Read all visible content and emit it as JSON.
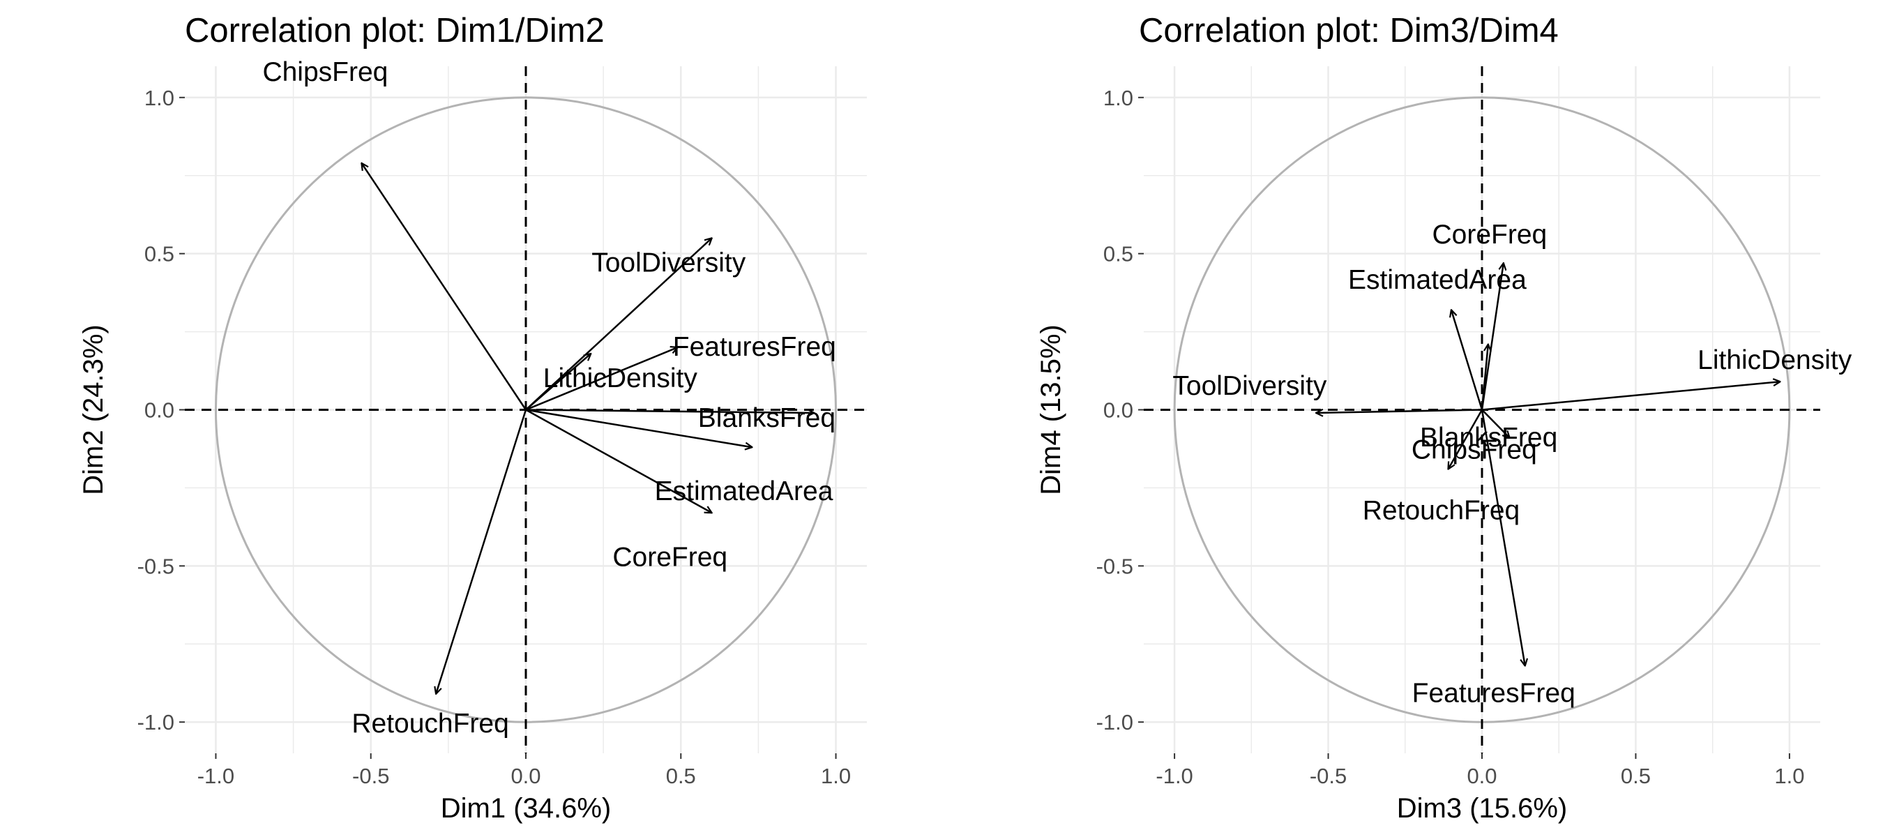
{
  "chart_data": [
    {
      "type": "scatter",
      "title": "Correlation plot: Dim1/Dim2",
      "xlabel": "Dim1 (34.6%)",
      "ylabel": "Dim2 (24.3%)",
      "xlim": [
        -1.1,
        1.1
      ],
      "ylim": [
        -1.1,
        1.1
      ],
      "xticks": [
        "-1.0",
        "-0.5",
        "0.0",
        "0.5",
        "1.0"
      ],
      "yticks": [
        "1.0",
        "0.5",
        "0.0",
        "-0.5",
        "-1.0"
      ],
      "grid": true,
      "unit_circle": true,
      "circle_color": "#b3b3b3",
      "grid_color": "#ebebeb",
      "variables": [
        {
          "name": "ChipsFreq",
          "x": -0.53,
          "y": 0.79
        },
        {
          "name": "ToolDiversity",
          "x": 0.6,
          "y": 0.55
        },
        {
          "name": "FeaturesFreq",
          "x": 0.49,
          "y": 0.2
        },
        {
          "name": "LithicDensity",
          "x": 0.21,
          "y": 0.18
        },
        {
          "name": "BlanksFreq",
          "x": 0.93,
          "y": -0.01
        },
        {
          "name": "EstimatedArea",
          "x": 0.73,
          "y": -0.12
        },
        {
          "name": "CoreFreq",
          "x": 0.6,
          "y": -0.33
        },
        {
          "name": "RetouchFreq",
          "x": -0.29,
          "y": -0.91
        }
      ]
    },
    {
      "type": "scatter",
      "title": "Correlation plot: Dim3/Dim4",
      "xlabel": "Dim3 (15.6%)",
      "ylabel": "Dim4 (13.5%)",
      "xlim": [
        -1.1,
        1.1
      ],
      "ylim": [
        -1.1,
        1.1
      ],
      "xticks": [
        "-1.0",
        "-0.5",
        "0.0",
        "0.5",
        "1.0"
      ],
      "yticks": [
        "1.0",
        "0.5",
        "0.0",
        "-0.5",
        "-1.0"
      ],
      "grid": true,
      "unit_circle": true,
      "circle_color": "#b3b3b3",
      "grid_color": "#ebebeb",
      "variables": [
        {
          "name": "CoreFreq",
          "x": 0.07,
          "y": 0.47
        },
        {
          "name": "EstimatedArea",
          "x": -0.1,
          "y": 0.32
        },
        {
          "name": "ChipsFreq",
          "x": 0.02,
          "y": 0.21
        },
        {
          "name": "LithicDensity",
          "x": 0.97,
          "y": 0.09
        },
        {
          "name": "ToolDiversity",
          "x": -0.54,
          "y": -0.01
        },
        {
          "name": "BlanksFreq",
          "x": 0.09,
          "y": -0.09
        },
        {
          "name": "RetouchFreq",
          "x": -0.11,
          "y": -0.19
        },
        {
          "name": "FeaturesFreq",
          "x": 0.14,
          "y": -0.82
        }
      ]
    }
  ]
}
